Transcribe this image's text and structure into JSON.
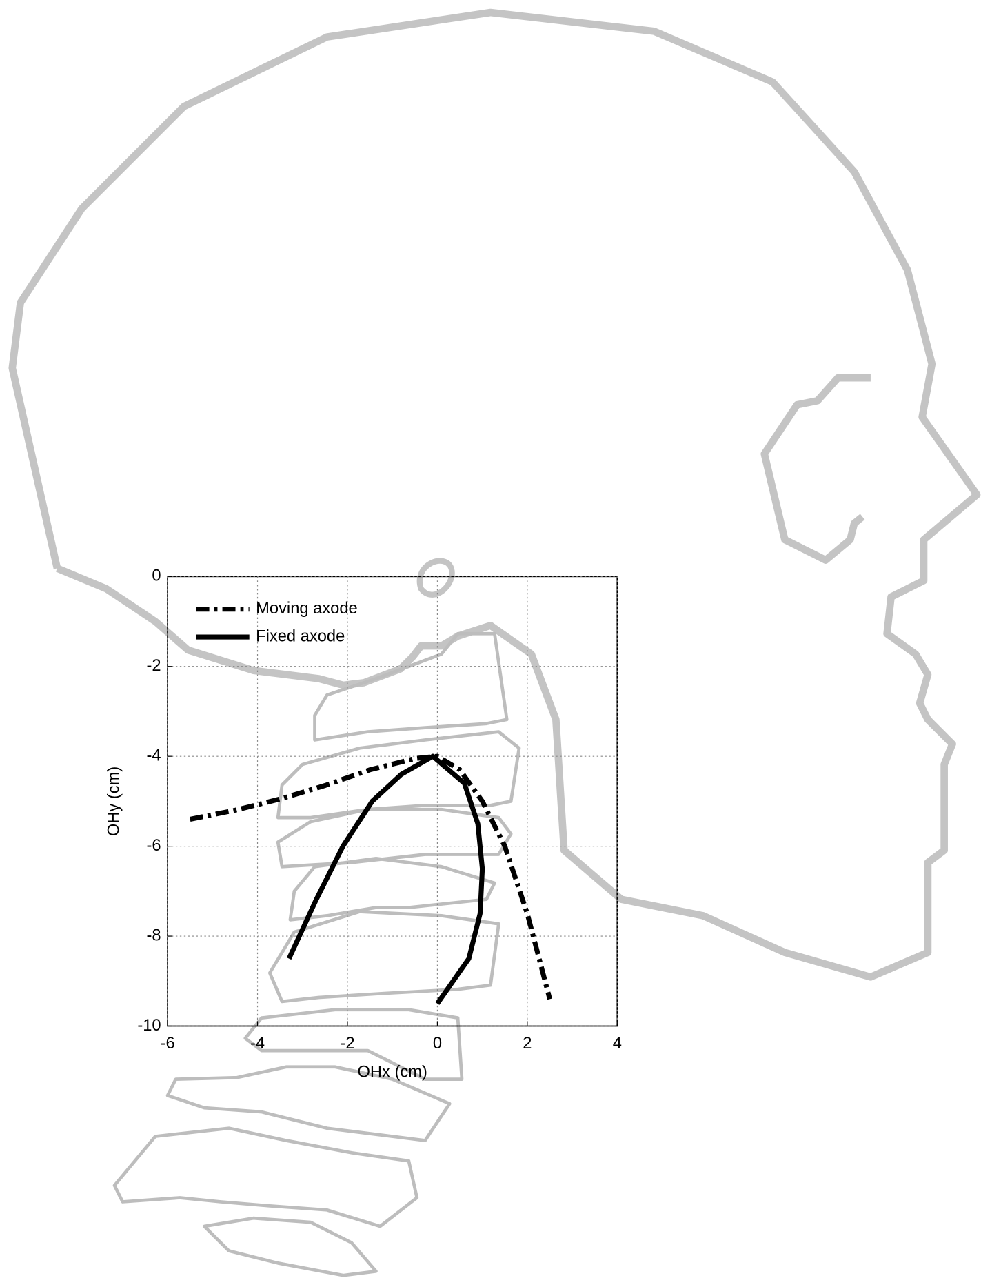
{
  "chart_data": {
    "type": "line",
    "xlabel": "OHx (cm)",
    "ylabel": "OHy (cm)",
    "xlim": [
      -6,
      4
    ],
    "ylim": [
      -10,
      0
    ],
    "xticks": [
      -6,
      -4,
      -2,
      0,
      2,
      4
    ],
    "yticks": [
      -10,
      -8,
      -6,
      -4,
      -2,
      0
    ],
    "grid": true,
    "legend": "upper left",
    "series": [
      {
        "name": "Moving axode",
        "color": "#000000",
        "linestyle": "dash-dot",
        "x": [
          -5.5,
          -4.5,
          -3.5,
          -2.5,
          -1.5,
          -0.5,
          0,
          0.5,
          1.0,
          1.5,
          2.0,
          2.5
        ],
        "values": [
          -5.4,
          -5.2,
          -4.95,
          -4.65,
          -4.3,
          -4.05,
          -4.0,
          -4.3,
          -5.0,
          -6.0,
          -7.5,
          -9.4
        ]
      },
      {
        "name": "Fixed axode",
        "color": "#000000",
        "linestyle": "solid",
        "x": [
          -3.3,
          -2.7,
          -2.1,
          -1.45,
          -0.8,
          -0.1,
          0.6,
          0.9,
          1.0,
          0.95,
          0.7,
          0.0
        ],
        "values": [
          -8.5,
          -7.2,
          -6.0,
          -5.0,
          -4.4,
          -4.0,
          -4.6,
          -5.5,
          -6.5,
          -7.5,
          -8.5,
          -9.5
        ]
      }
    ]
  }
}
